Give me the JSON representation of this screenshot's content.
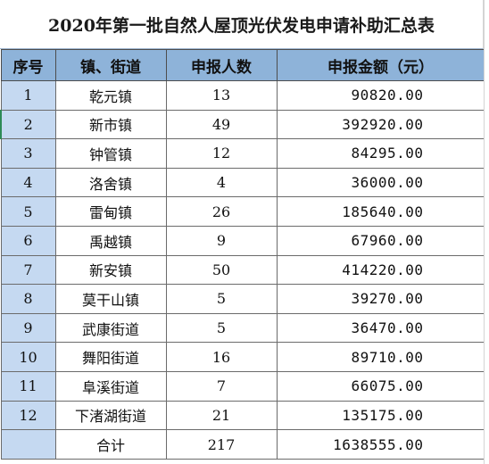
{
  "title": "2020年第一批自然人屋顶光伏发电申请补助汇总表",
  "headers": {
    "seq": "序号",
    "town": "镇、街道",
    "count": "申报人数",
    "amount": "申报金额（元）"
  },
  "rows": [
    {
      "seq": "1",
      "town": "乾元镇",
      "count": "13",
      "amount": "90820.00"
    },
    {
      "seq": "2",
      "town": "新市镇",
      "count": "49",
      "amount": "392920.00"
    },
    {
      "seq": "3",
      "town": "钟管镇",
      "count": "12",
      "amount": "84295.00"
    },
    {
      "seq": "4",
      "town": "洛舍镇",
      "count": "4",
      "amount": "36000.00"
    },
    {
      "seq": "5",
      "town": "雷甸镇",
      "count": "26",
      "amount": "185640.00"
    },
    {
      "seq": "6",
      "town": "禹越镇",
      "count": "9",
      "amount": "67960.00"
    },
    {
      "seq": "7",
      "town": "新安镇",
      "count": "50",
      "amount": "414220.00"
    },
    {
      "seq": "8",
      "town": "莫干山镇",
      "count": "5",
      "amount": "39270.00"
    },
    {
      "seq": "9",
      "town": "武康街道",
      "count": "5",
      "amount": "36470.00"
    },
    {
      "seq": "10",
      "town": "舞阳街道",
      "count": "16",
      "amount": "89710.00"
    },
    {
      "seq": "11",
      "town": "阜溪街道",
      "count": "7",
      "amount": "66075.00"
    },
    {
      "seq": "12",
      "town": "下渚湖街道",
      "count": "21",
      "amount": "135175.00"
    }
  ],
  "total": {
    "label": "合计",
    "count": "217",
    "amount": "1638555.00"
  },
  "colors": {
    "header_fill": "#8eb3d9",
    "seq_fill": "#c5d9f1",
    "selection_accent": "#2e8b57"
  }
}
